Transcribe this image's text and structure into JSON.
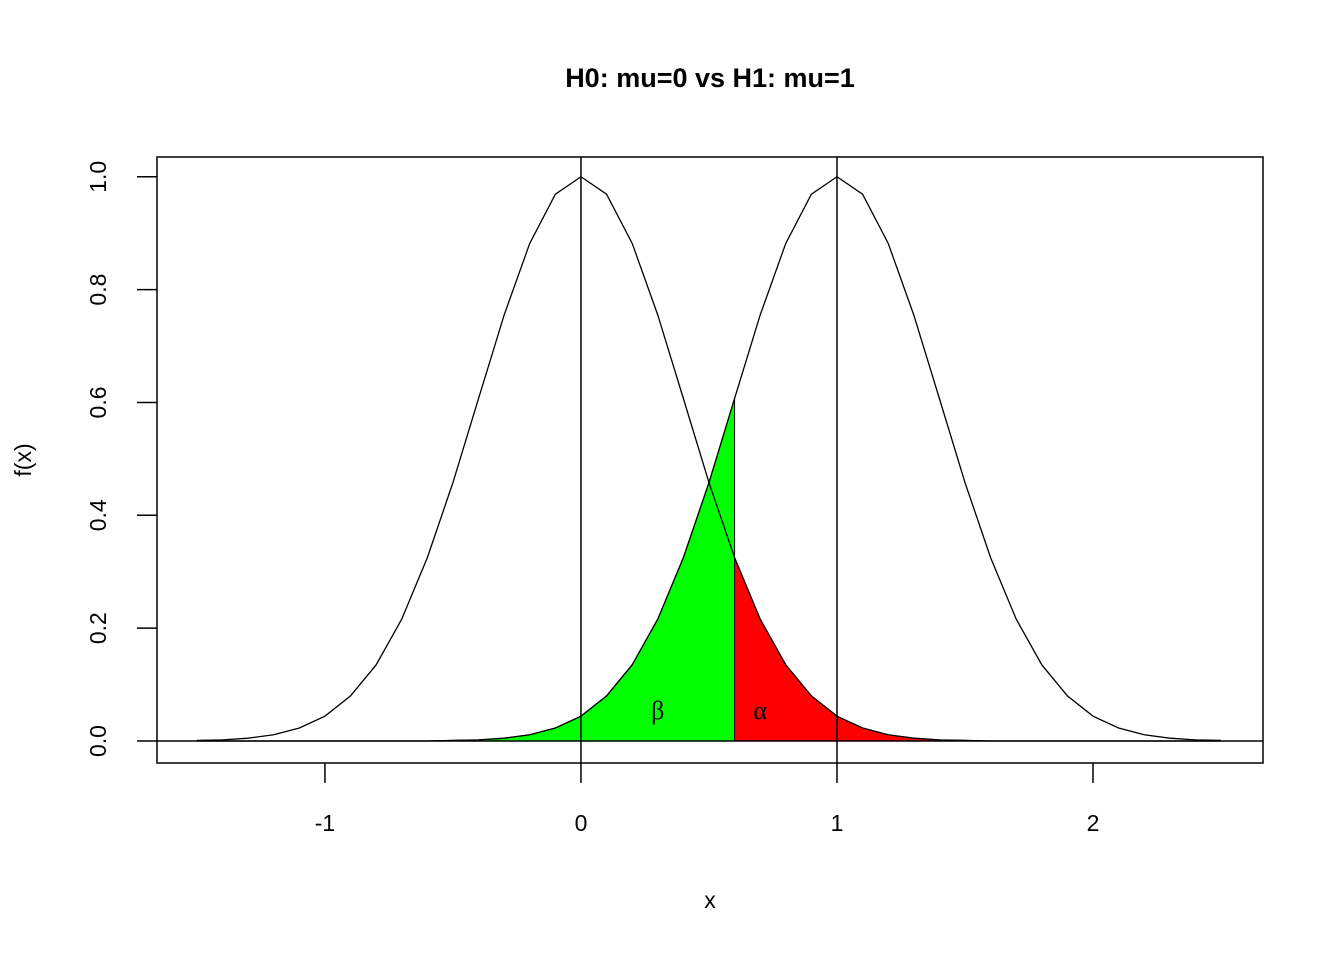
{
  "chart_data": {
    "type": "line",
    "title": "H0: mu=0 vs H1: mu=1",
    "xlabel": "x",
    "ylabel": "f(x)",
    "x": [
      -1.5,
      -1.4,
      -1.3,
      -1.2,
      -1.1,
      -1.0,
      -0.9,
      -0.8,
      -0.7,
      -0.6,
      -0.5,
      -0.4,
      -0.3,
      -0.2,
      -0.1,
      0,
      0.1,
      0.2,
      0.3,
      0.4,
      0.5,
      0.6,
      0.7,
      0.8,
      0.9,
      1.0,
      1.1,
      1.2,
      1.3,
      1.4,
      1.5,
      1.6,
      1.7,
      1.8,
      1.9,
      2.0,
      2.1,
      2.2,
      2.3,
      2.4,
      2.5
    ],
    "series": [
      {
        "color": "#000000",
        "fill": "#ff0000",
        "values": [
          0.001,
          0.002,
          0.005,
          0.011,
          0.023,
          0.044,
          0.08,
          0.135,
          0.216,
          0.325,
          0.458,
          0.607,
          0.755,
          0.882,
          0.969,
          1,
          0.969,
          0.882,
          0.755,
          0.607,
          0.458,
          0.325,
          0.216,
          0.135,
          0.08,
          0.044,
          0.023,
          0.011,
          0.005,
          0.002,
          0.001,
          0,
          0,
          0,
          0,
          0,
          0,
          0,
          0,
          0,
          0
        ]
      },
      {
        "color": "#000000",
        "fill": "#00ff00",
        "values": [
          0,
          0,
          0,
          0,
          0,
          0,
          0,
          0,
          0,
          0,
          0.001,
          0.002,
          0.005,
          0.011,
          0.023,
          0.044,
          0.08,
          0.135,
          0.216,
          0.325,
          0.458,
          0.607,
          0.755,
          0.882,
          0.969,
          1,
          0.969,
          0.882,
          0.755,
          0.607,
          0.458,
          0.325,
          0.216,
          0.135,
          0.08,
          0.044,
          0.023,
          0.011,
          0.005,
          0.002,
          0.001
        ]
      }
    ],
    "critical_x": 0.6,
    "vlines": [
      0,
      1
    ],
    "hline": 0,
    "annotations": [
      {
        "text": "β",
        "x": 0.3,
        "y": 0.05
      },
      {
        "text": "α",
        "x": 0.7,
        "y": 0.05
      }
    ],
    "xlim": [
      -1.656,
      2.664
    ],
    "ylim": [
      -0.039,
      1.035
    ],
    "xticks": [
      -1,
      0,
      1,
      2
    ],
    "yticks": [
      {
        "value": 0,
        "label": "0.0"
      },
      {
        "value": 0.2,
        "label": "0.2"
      },
      {
        "value": 0.4,
        "label": "0.4"
      },
      {
        "value": 0.6,
        "label": "0.6"
      },
      {
        "value": 0.8,
        "label": "0.8"
      },
      {
        "value": 1,
        "label": "1.0"
      }
    ]
  }
}
